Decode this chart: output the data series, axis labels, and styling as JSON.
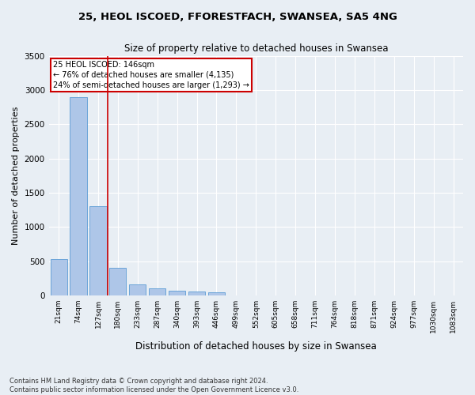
{
  "title_line1": "25, HEOL ISCOED, FFORESTFACH, SWANSEA, SA5 4NG",
  "title_line2": "Size of property relative to detached houses in Swansea",
  "xlabel": "Distribution of detached houses by size in Swansea",
  "ylabel": "Number of detached properties",
  "footnote": "Contains HM Land Registry data © Crown copyright and database right 2024.\nContains public sector information licensed under the Open Government Licence v3.0.",
  "categories": [
    "21sqm",
    "74sqm",
    "127sqm",
    "180sqm",
    "233sqm",
    "287sqm",
    "340sqm",
    "393sqm",
    "446sqm",
    "499sqm",
    "552sqm",
    "605sqm",
    "658sqm",
    "711sqm",
    "764sqm",
    "818sqm",
    "871sqm",
    "924sqm",
    "977sqm",
    "1030sqm",
    "1083sqm"
  ],
  "values": [
    530,
    2900,
    1300,
    400,
    165,
    100,
    70,
    60,
    50,
    0,
    0,
    0,
    0,
    0,
    0,
    0,
    0,
    0,
    0,
    0,
    0
  ],
  "bar_color": "#aec6e8",
  "bar_edge_color": "#5b9bd5",
  "bg_color": "#e8eef4",
  "grid_color": "#ffffff",
  "vline_color": "#cc0000",
  "annotation_text": "25 HEOL ISCOED: 146sqm\n← 76% of detached houses are smaller (4,135)\n24% of semi-detached houses are larger (1,293) →",
  "annotation_box_color": "#ffffff",
  "annotation_box_edge": "#cc0000",
  "ylim": [
    0,
    3500
  ],
  "yticks": [
    0,
    500,
    1000,
    1500,
    2000,
    2500,
    3000,
    3500
  ]
}
